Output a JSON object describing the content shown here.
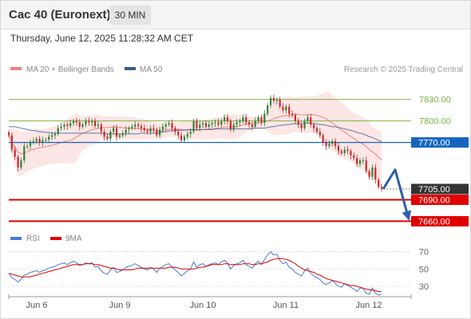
{
  "header": {
    "title": "Cac 40 (Euronext)",
    "timeframe": "30 MIN",
    "datetime": "Thursday, June 12, 2025 11:28:32 AM CET"
  },
  "legend": {
    "ma20_label": "MA 20 + Bollinger Bands",
    "ma50_label": "MA 50",
    "credit": "Research © 2025 Trading Central",
    "rsi_label": "RSI",
    "rsi_ma_label": "9MA"
  },
  "colors": {
    "ma20": "#f08080",
    "bollinger_fill": "#fde2e2",
    "ma50": "#3a5a8c",
    "bullish": "#2e7d32",
    "bearish": "#c62828",
    "resistance_green": "#7cb342",
    "pivot_blue": "#1565c0",
    "support_red": "#e00000",
    "price_box": "#333333",
    "arrow": "#2e5fa8",
    "rsi": "#4a7bd0",
    "rsi_ma": "#e00000"
  },
  "chart_data": [
    {
      "type": "candlestick",
      "title": "Cac 40 (Euronext) 30 MIN",
      "x_tick_labels": [
        "Jun 6",
        "Jun 9",
        "Jun 10",
        "Jun 11",
        "Jun 12"
      ],
      "ylim": [
        7646,
        7862
      ],
      "last_price": 7705.0,
      "levels": [
        {
          "value": 7830.0,
          "label": "7830.00",
          "kind": "resistance"
        },
        {
          "value": 7800.0,
          "label": "7800.00",
          "kind": "resistance"
        },
        {
          "value": 7770.0,
          "label": "7770.00",
          "kind": "pivot"
        },
        {
          "value": 7705.0,
          "label": "7705.00",
          "kind": "last"
        },
        {
          "value": 7690.0,
          "label": "7690.00",
          "kind": "support"
        },
        {
          "value": 7660.0,
          "label": "7660.00",
          "kind": "support"
        }
      ],
      "closes": [
        7780,
        7760,
        7750,
        7735,
        7745,
        7765,
        7765,
        7770,
        7772,
        7775,
        7770,
        7773,
        7774,
        7778,
        7780,
        7782,
        7790,
        7792,
        7795,
        7793,
        7797,
        7800,
        7798,
        7792,
        7795,
        7800,
        7798,
        7800,
        7793,
        7795,
        7785,
        7778,
        7775,
        7785,
        7790,
        7778,
        7780,
        7783,
        7788,
        7790,
        7792,
        7795,
        7793,
        7790,
        7787,
        7785,
        7790,
        7788,
        7780,
        7788,
        7792,
        7795,
        7797,
        7790,
        7785,
        7780,
        7773,
        7778,
        7782,
        7785,
        7800,
        7790,
        7795,
        7797,
        7792,
        7795,
        7797,
        7798,
        7795,
        7800,
        7805,
        7800,
        7788,
        7795,
        7798,
        7800,
        7805,
        7798,
        7795,
        7792,
        7800,
        7805,
        7798,
        7810,
        7822,
        7832,
        7828,
        7830,
        7820,
        7815,
        7820,
        7810,
        7808,
        7800,
        7795,
        7790,
        7800,
        7805,
        7795,
        7790,
        7785,
        7780,
        7770,
        7765,
        7768,
        7772,
        7765,
        7758,
        7755,
        7760,
        7758,
        7752,
        7748,
        7740,
        7745,
        7745,
        7730,
        7722,
        7735,
        7718,
        7708,
        7705
      ],
      "ma50": [
        7792,
        7792,
        7792,
        7791,
        7790,
        7789,
        7788,
        7787,
        7787,
        7786,
        7785,
        7785,
        7784,
        7784,
        7783,
        7783,
        7783,
        7783,
        7783,
        7783,
        7783,
        7783,
        7783,
        7783,
        7783,
        7783,
        7783,
        7783,
        7783,
        7783,
        7783,
        7783,
        7782,
        7782,
        7782,
        7782,
        7782,
        7782,
        7782,
        7782,
        7782,
        7782,
        7782,
        7783,
        7783,
        7783,
        7783,
        7783,
        7783,
        7784,
        7785,
        7785,
        7786,
        7786,
        7787,
        7787,
        7787,
        7787,
        7788,
        7788,
        7788,
        7788,
        7788,
        7788,
        7788,
        7788,
        7788,
        7789,
        7789,
        7789,
        7789,
        7789,
        7789,
        7789,
        7789,
        7789,
        7789,
        7789,
        7789,
        7790,
        7790,
        7790,
        7790,
        7790,
        7791,
        7792,
        7792,
        7793,
        7794,
        7794,
        7795,
        7795,
        7796,
        7796,
        7796,
        7796,
        7797,
        7797,
        7797,
        7796,
        7796,
        7795,
        7795,
        7794,
        7793,
        7792,
        7792,
        7791,
        7790,
        7789,
        7788,
        7787,
        7786,
        7784,
        7783,
        7782,
        7780,
        7778,
        7777,
        7775,
        7773,
        7771
      ]
    },
    {
      "type": "line",
      "title": "RSI",
      "series": [
        {
          "name": "RSI"
        },
        {
          "name": "9MA"
        }
      ],
      "ylim": [
        20,
        75
      ],
      "y_tick_labels": [
        "70",
        "50",
        "30"
      ],
      "rsi": [
        45,
        40,
        38,
        35,
        38,
        43,
        44,
        46,
        47,
        48,
        46,
        48,
        49,
        51,
        52,
        53,
        55,
        56,
        57,
        55,
        57,
        59,
        57,
        54,
        55,
        57,
        56,
        57,
        52,
        53,
        48,
        45,
        44,
        49,
        52,
        46,
        47,
        49,
        52,
        53,
        54,
        56,
        54,
        52,
        50,
        49,
        52,
        50,
        46,
        51,
        53,
        55,
        56,
        52,
        49,
        46,
        42,
        45,
        48,
        50,
        58,
        52,
        55,
        56,
        53,
        55,
        56,
        57,
        55,
        58,
        60,
        57,
        50,
        54,
        56,
        57,
        60,
        55,
        53,
        51,
        56,
        59,
        55,
        61,
        66,
        70,
        66,
        67,
        60,
        56,
        58,
        52,
        50,
        46,
        44,
        42,
        48,
        51,
        45,
        42,
        40,
        38,
        34,
        32,
        34,
        37,
        33,
        30,
        29,
        33,
        31,
        29,
        27,
        24,
        28,
        28,
        22,
        21,
        28,
        22,
        20,
        21
      ],
      "rsi_ma": [
        45,
        44,
        43,
        42,
        41,
        41,
        41,
        41,
        42,
        43,
        44,
        45,
        46,
        47,
        48,
        49,
        50,
        51,
        52,
        53,
        54,
        55,
        55,
        55,
        55,
        56,
        56,
        56,
        55,
        55,
        54,
        53,
        52,
        51,
        51,
        50,
        49,
        49,
        49,
        49,
        49,
        50,
        51,
        51,
        51,
        51,
        51,
        51,
        51,
        51,
        51,
        51,
        52,
        52,
        52,
        51,
        50,
        50,
        50,
        50,
        50,
        51,
        52,
        52,
        53,
        54,
        55,
        55,
        55,
        55,
        56,
        56,
        55,
        55,
        55,
        55,
        56,
        56,
        56,
        55,
        55,
        56,
        56,
        57,
        58,
        60,
        61,
        62,
        62,
        62,
        61,
        60,
        58,
        56,
        53,
        51,
        49,
        48,
        47,
        46,
        44,
        43,
        41,
        39,
        38,
        37,
        36,
        35,
        34,
        33,
        32,
        31,
        31,
        30,
        29,
        28,
        27,
        26,
        26,
        25,
        24,
        24
      ]
    }
  ]
}
